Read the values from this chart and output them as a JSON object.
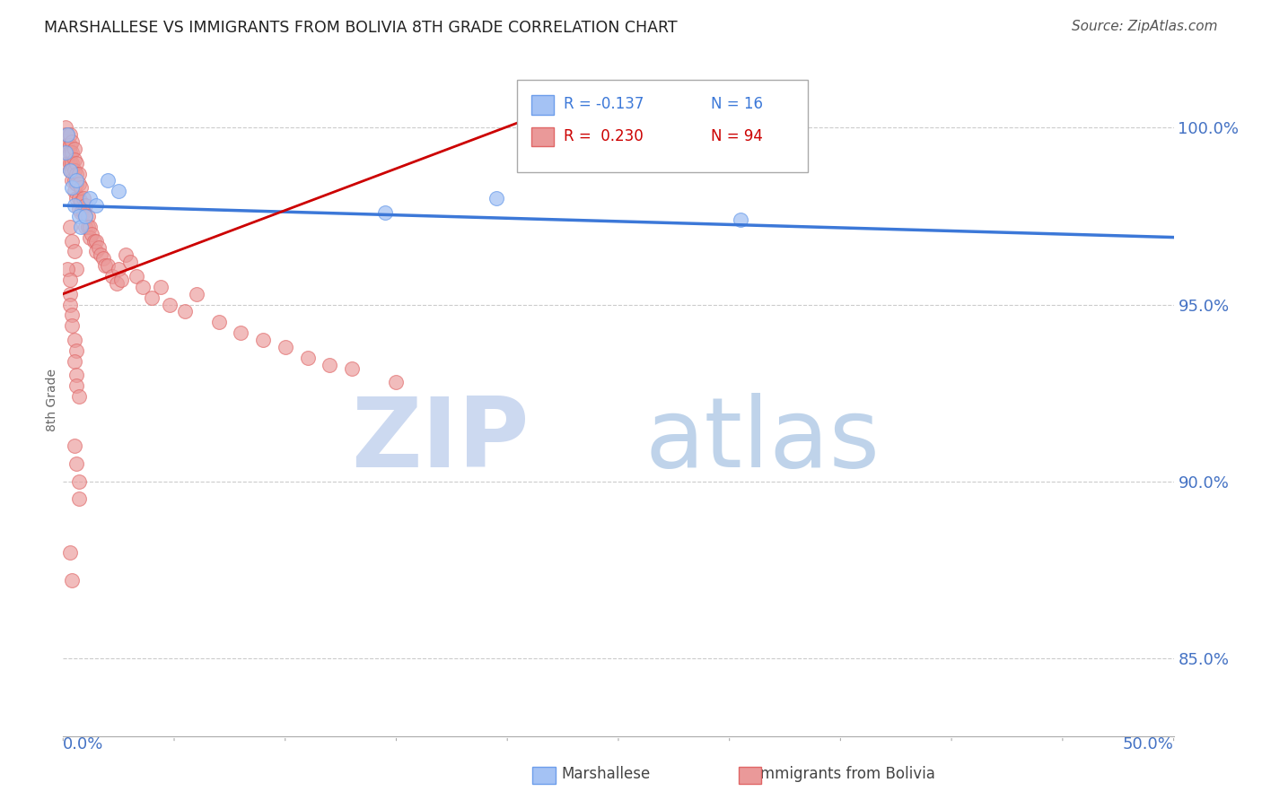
{
  "title": "MARSHALLESE VS IMMIGRANTS FROM BOLIVIA 8TH GRADE CORRELATION CHART",
  "source_text": "Source: ZipAtlas.com",
  "ylabel": "8th Grade",
  "y_tick_labels": [
    "100.0%",
    "95.0%",
    "90.0%",
    "85.0%"
  ],
  "y_tick_values": [
    1.0,
    0.95,
    0.9,
    0.85
  ],
  "xlim": [
    0.0,
    0.5
  ],
  "ylim": [
    0.828,
    1.018
  ],
  "blue_color": "#a4c2f4",
  "blue_edge_color": "#6d9eeb",
  "pink_color": "#ea9999",
  "pink_edge_color": "#e06666",
  "blue_line_color": "#3c78d8",
  "pink_line_color": "#cc0000",
  "background_color": "#ffffff",
  "marshallese_x": [
    0.001,
    0.002,
    0.003,
    0.004,
    0.005,
    0.006,
    0.007,
    0.008,
    0.01,
    0.012,
    0.015,
    0.02,
    0.025,
    0.145,
    0.195,
    0.305
  ],
  "marshallese_y": [
    0.993,
    0.998,
    0.988,
    0.983,
    0.978,
    0.985,
    0.975,
    0.972,
    0.975,
    0.98,
    0.978,
    0.985,
    0.982,
    0.976,
    0.98,
    0.974
  ],
  "bolivia_x": [
    0.001,
    0.001,
    0.001,
    0.002,
    0.002,
    0.002,
    0.002,
    0.003,
    0.003,
    0.003,
    0.003,
    0.003,
    0.004,
    0.004,
    0.004,
    0.004,
    0.004,
    0.005,
    0.005,
    0.005,
    0.005,
    0.005,
    0.006,
    0.006,
    0.006,
    0.006,
    0.007,
    0.007,
    0.007,
    0.007,
    0.008,
    0.008,
    0.008,
    0.009,
    0.009,
    0.01,
    0.01,
    0.01,
    0.011,
    0.011,
    0.012,
    0.012,
    0.013,
    0.014,
    0.015,
    0.015,
    0.016,
    0.017,
    0.018,
    0.019,
    0.02,
    0.022,
    0.024,
    0.025,
    0.026,
    0.028,
    0.03,
    0.033,
    0.036,
    0.04,
    0.044,
    0.048,
    0.055,
    0.06,
    0.07,
    0.08,
    0.09,
    0.1,
    0.11,
    0.12,
    0.13,
    0.15,
    0.003,
    0.004,
    0.005,
    0.006,
    0.002,
    0.003,
    0.003,
    0.003,
    0.004,
    0.004,
    0.005,
    0.006,
    0.005,
    0.006,
    0.006,
    0.007,
    0.005,
    0.006,
    0.007,
    0.007,
    0.003,
    0.004
  ],
  "bolivia_y": [
    0.998,
    0.995,
    1.0,
    0.998,
    0.995,
    0.993,
    0.99,
    0.998,
    0.995,
    0.993,
    0.99,
    0.988,
    0.996,
    0.993,
    0.99,
    0.988,
    0.985,
    0.994,
    0.991,
    0.988,
    0.985,
    0.982,
    0.99,
    0.987,
    0.984,
    0.98,
    0.987,
    0.984,
    0.98,
    0.977,
    0.983,
    0.979,
    0.976,
    0.98,
    0.976,
    0.978,
    0.975,
    0.972,
    0.975,
    0.972,
    0.972,
    0.969,
    0.97,
    0.968,
    0.968,
    0.965,
    0.966,
    0.964,
    0.963,
    0.961,
    0.961,
    0.958,
    0.956,
    0.96,
    0.957,
    0.964,
    0.962,
    0.958,
    0.955,
    0.952,
    0.955,
    0.95,
    0.948,
    0.953,
    0.945,
    0.942,
    0.94,
    0.938,
    0.935,
    0.933,
    0.932,
    0.928,
    0.972,
    0.968,
    0.965,
    0.96,
    0.96,
    0.957,
    0.953,
    0.95,
    0.947,
    0.944,
    0.94,
    0.937,
    0.934,
    0.93,
    0.927,
    0.924,
    0.91,
    0.905,
    0.9,
    0.895,
    0.88,
    0.872
  ],
  "blue_trend_x": [
    0.0,
    0.5
  ],
  "blue_trend_y": [
    0.978,
    0.969
  ],
  "pink_trend_x": [
    0.0,
    0.22
  ],
  "pink_trend_y": [
    0.953,
    1.005
  ],
  "watermark_zip_color": "#ccd9f0",
  "watermark_atlas_color": "#b8cfe8"
}
